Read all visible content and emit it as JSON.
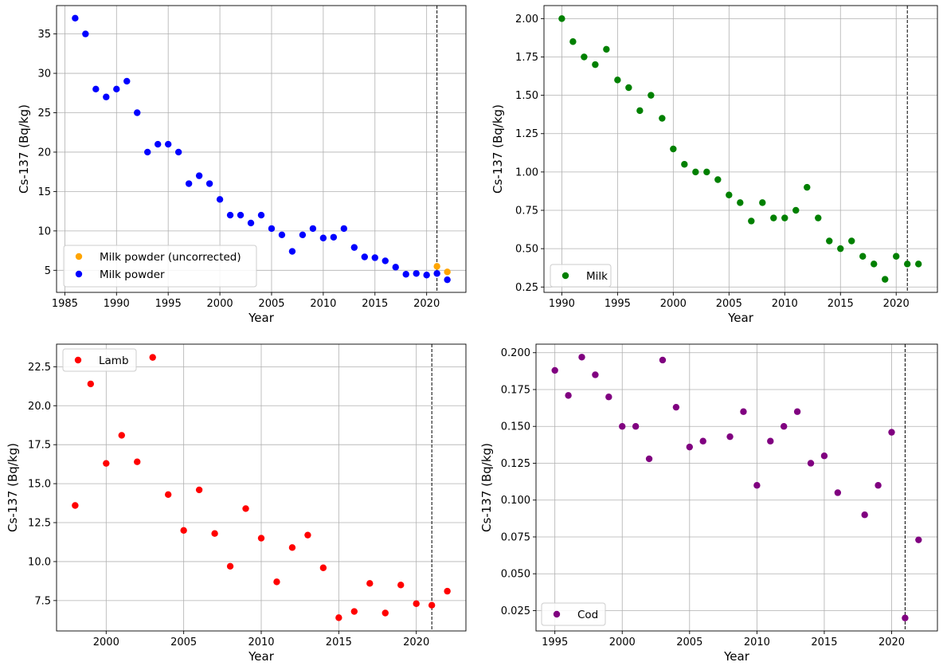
{
  "chart_data": [
    {
      "type": "scatter",
      "xlabel": "Year",
      "ylabel": "Cs-137 (Bq/kg)",
      "xlim": [
        1984.2,
        2023.8
      ],
      "ylim": [
        2.2,
        38.6
      ],
      "xticks": [
        1985,
        1990,
        1995,
        2000,
        2005,
        2010,
        2015,
        2020
      ],
      "yticks": [
        5,
        10,
        15,
        20,
        25,
        30,
        35
      ],
      "ytick_labels": [
        "5",
        "10",
        "15",
        "20",
        "25",
        "30",
        "35"
      ],
      "grid": true,
      "legend_position": "lower-left",
      "vline_x": 2021,
      "series": [
        {
          "name": "Milk powder (uncorrected)",
          "color": "#ffa500",
          "x": [
            2021,
            2022
          ],
          "y": [
            5.5,
            4.8
          ]
        },
        {
          "name": "Milk powder",
          "color": "#0000ff",
          "x": [
            1986,
            1987,
            1988,
            1989,
            1990,
            1991,
            1992,
            1993,
            1994,
            1995,
            1996,
            1997,
            1998,
            1999,
            2000,
            2001,
            2002,
            2003,
            2004,
            2005,
            2006,
            2007,
            2008,
            2009,
            2010,
            2011,
            2012,
            2013,
            2014,
            2015,
            2016,
            2017,
            2018,
            2019,
            2020,
            2021,
            2022
          ],
          "y": [
            37,
            35,
            28,
            27,
            28,
            29,
            25,
            20,
            21,
            21,
            20,
            16,
            17,
            16,
            14,
            12,
            12,
            11,
            12,
            10.3,
            9.5,
            7.4,
            9.5,
            10.3,
            9.1,
            9.2,
            10.3,
            7.9,
            6.7,
            6.6,
            6.2,
            5.4,
            4.5,
            4.6,
            4.4,
            4.6,
            3.8
          ]
        }
      ]
    },
    {
      "type": "scatter",
      "xlabel": "Year",
      "ylabel": "Cs-137 (Bq/kg)",
      "xlim": [
        1988.4,
        2023.7
      ],
      "ylim": [
        0.215,
        2.085
      ],
      "xticks": [
        1990,
        1995,
        2000,
        2005,
        2010,
        2015,
        2020
      ],
      "yticks": [
        0.25,
        0.5,
        0.75,
        1.0,
        1.25,
        1.5,
        1.75,
        2.0
      ],
      "ytick_labels": [
        "0.25",
        "0.50",
        "0.75",
        "1.00",
        "1.25",
        "1.50",
        "1.75",
        "2.00"
      ],
      "grid": true,
      "legend_position": "lower-left",
      "vline_x": 2021,
      "series": [
        {
          "name": "Milk",
          "color": "#008000",
          "x": [
            1990,
            1991,
            1992,
            1993,
            1994,
            1995,
            1996,
            1997,
            1998,
            1999,
            2000,
            2001,
            2002,
            2003,
            2004,
            2005,
            2006,
            2007,
            2008,
            2009,
            2010,
            2011,
            2012,
            2013,
            2014,
            2015,
            2016,
            2017,
            2018,
            2019,
            2020,
            2021,
            2022
          ],
          "y": [
            2.0,
            1.85,
            1.75,
            1.7,
            1.8,
            1.6,
            1.55,
            1.4,
            1.5,
            1.35,
            1.15,
            1.05,
            1.0,
            1.0,
            0.95,
            0.85,
            0.8,
            0.68,
            0.8,
            0.7,
            0.7,
            0.75,
            0.9,
            0.7,
            0.55,
            0.5,
            0.55,
            0.45,
            0.4,
            0.3,
            0.45,
            0.4,
            0.4
          ]
        }
      ]
    },
    {
      "type": "scatter",
      "xlabel": "Year",
      "ylabel": "Cs-137 (Bq/kg)",
      "xlim": [
        1996.8,
        2023.2
      ],
      "ylim": [
        5.55,
        23.95
      ],
      "xticks": [
        2000,
        2005,
        2010,
        2015,
        2020
      ],
      "yticks": [
        7.5,
        10.0,
        12.5,
        15.0,
        17.5,
        20.0,
        22.5
      ],
      "ytick_labels": [
        "7.5",
        "10.0",
        "12.5",
        "15.0",
        "17.5",
        "20.0",
        "22.5"
      ],
      "grid": true,
      "legend_position": "upper-left",
      "vline_x": 2021,
      "series": [
        {
          "name": "Lamb",
          "color": "#ff0000",
          "x": [
            1998,
            1999,
            2000,
            2001,
            2002,
            2003,
            2004,
            2005,
            2006,
            2007,
            2008,
            2009,
            2010,
            2011,
            2012,
            2013,
            2014,
            2015,
            2016,
            2017,
            2018,
            2019,
            2020,
            2021,
            2022
          ],
          "y": [
            13.6,
            21.4,
            16.3,
            18.1,
            16.4,
            23.1,
            14.3,
            12.0,
            14.6,
            11.8,
            9.7,
            13.4,
            11.5,
            8.7,
            10.9,
            11.7,
            9.6,
            6.4,
            6.8,
            8.6,
            6.7,
            8.5,
            7.3,
            7.2,
            8.1
          ]
        }
      ]
    },
    {
      "type": "scatter",
      "xlabel": "Year",
      "ylabel": "Cs-137 (Bq/kg)",
      "xlim": [
        1993.6,
        2023.4
      ],
      "ylim": [
        0.0112,
        0.2058
      ],
      "xticks": [
        1995,
        2000,
        2005,
        2010,
        2015,
        2020
      ],
      "yticks": [
        0.025,
        0.05,
        0.075,
        0.1,
        0.125,
        0.15,
        0.175,
        0.2
      ],
      "ytick_labels": [
        "0.025",
        "0.050",
        "0.075",
        "0.100",
        "0.125",
        "0.150",
        "0.175",
        "0.200"
      ],
      "grid": true,
      "legend_position": "lower-left",
      "vline_x": 2021,
      "series": [
        {
          "name": "Cod",
          "color": "#800080",
          "x": [
            1995,
            1996,
            1997,
            1998,
            1999,
            2000,
            2001,
            2002,
            2003,
            2004,
            2005,
            2006,
            2008,
            2009,
            2010,
            2011,
            2012,
            2013,
            2014,
            2015,
            2016,
            2018,
            2019,
            2020,
            2021,
            2022
          ],
          "y": [
            0.188,
            0.171,
            0.197,
            0.185,
            0.17,
            0.15,
            0.15,
            0.128,
            0.195,
            0.163,
            0.136,
            0.14,
            0.143,
            0.16,
            0.11,
            0.14,
            0.15,
            0.16,
            0.125,
            0.13,
            0.105,
            0.09,
            0.11,
            0.146,
            0.02,
            0.073
          ]
        }
      ]
    }
  ]
}
